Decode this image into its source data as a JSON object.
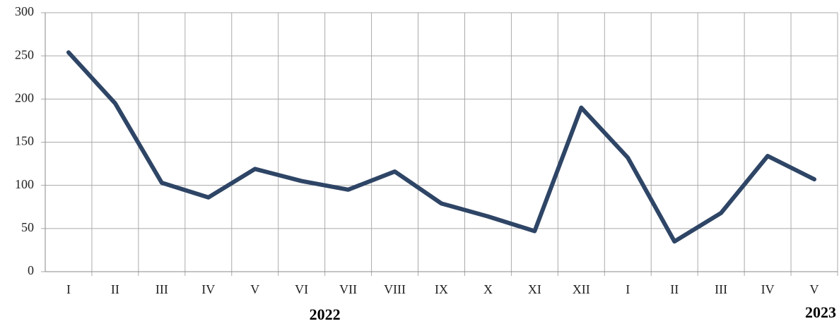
{
  "chart_data": {
    "type": "line",
    "categories": [
      "I",
      "II",
      "III",
      "IV",
      "V",
      "VI",
      "VII",
      "VIII",
      "IX",
      "X",
      "XI",
      "XII",
      "I",
      "II",
      "III",
      "IV",
      "V"
    ],
    "series": [
      {
        "color": "#2e4566",
        "values": [
          254,
          195,
          103,
          86,
          119,
          105,
          95,
          116,
          79,
          64,
          47,
          190,
          132,
          35,
          68,
          134,
          107
        ]
      }
    ],
    "x_groups": [
      "2022",
      "2023"
    ],
    "ylim": [
      0,
      300
    ],
    "yticks": [
      0,
      50,
      100,
      150,
      200,
      250,
      300
    ],
    "grid": true
  }
}
